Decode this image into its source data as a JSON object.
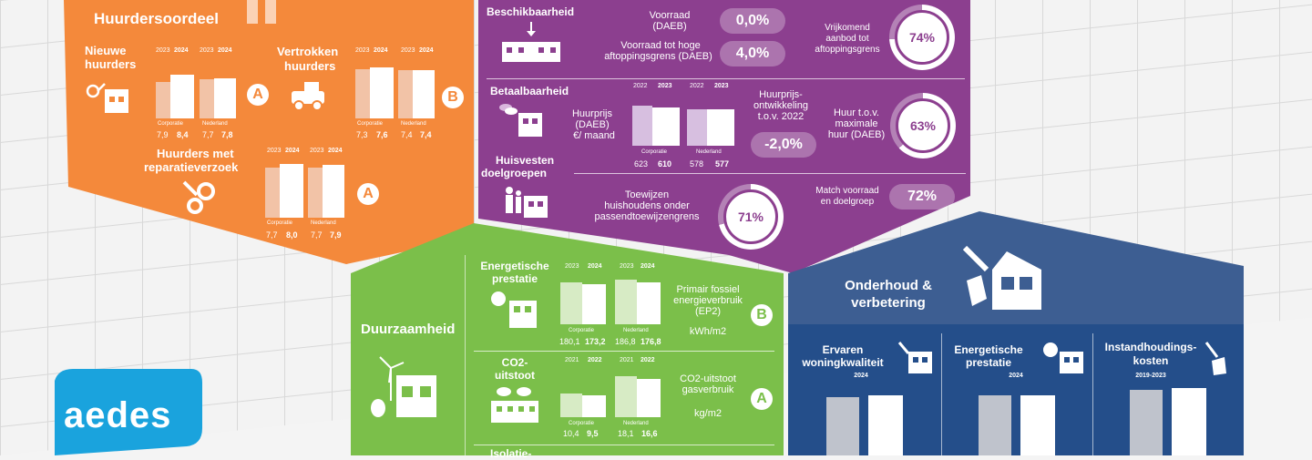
{
  "huurders": {
    "title": "Huurdersoordeel",
    "nieuwe": {
      "label1": "Nieuwe",
      "label2": "huurders",
      "years": [
        "2023",
        "2024",
        "2023",
        "2024"
      ],
      "cat_left": "Corporatie",
      "cat_right": "Nederland",
      "values": [
        "7,9",
        "8,4",
        "7,7",
        "7,8"
      ],
      "grade": "A"
    },
    "vertrokken": {
      "label1": "Vertrokken",
      "label2": "huurders",
      "years": [
        "2023",
        "2024",
        "2023",
        "2024"
      ],
      "cat_left": "Corporatie",
      "cat_right": "Nederland",
      "values": [
        "7,3",
        "7,6",
        "7,4",
        "7,4"
      ],
      "grade": "B"
    },
    "reparatie": {
      "label1": "Huurders met",
      "label2": "reparatieverzoek",
      "years": [
        "2023",
        "2024",
        "2023",
        "2024"
      ],
      "cat_left": "Corporatie",
      "cat_right": "Nederland",
      "values": [
        "7,7",
        "8,0",
        "7,7",
        "7,9"
      ],
      "grade": "A"
    }
  },
  "beschikbaarheid": {
    "title": "Beschikbaarheid",
    "voorraad_label1": "Voorraad",
    "voorraad_label2": "(DAEB)",
    "voorraad_value": "0,0%",
    "hoge_label1": "Voorraad tot hoge",
    "hoge_label2": "aftoppingsgrens (DAEB)",
    "hoge_value": "4,0%",
    "vrij_label1": "Vrijkomend",
    "vrij_label2": "aanbod tot",
    "vrij_label3": "aftoppingsgrens",
    "vrij_value": "74%",
    "vrij_fraction": 0.74
  },
  "betaalbaarheid": {
    "title": "Betaalbaarheid",
    "years": [
      "2022",
      "2023",
      "2022",
      "2023"
    ],
    "huurprijs_label1": "Huurprijs",
    "huurprijs_label2": "(DAEB)",
    "huurprijs_label3": "€/ maand",
    "cat_left": "Corporatie",
    "cat_right": "Nederland",
    "values": [
      "623",
      "610",
      "578",
      "577"
    ],
    "ontw_label1": "Huurprijs-",
    "ontw_label2": "ontwikkeling",
    "ontw_label3": "t.o.v. 2022",
    "ontw_value": "-2,0%",
    "max_label1": "Huur t.o.v.",
    "max_label2": "maximale",
    "max_label3": "huur (DAEB)",
    "max_value": "63%",
    "max_fraction": 0.63
  },
  "huisvesten": {
    "title1": "Huisvesten",
    "title2": "doelgroepen",
    "toewijzen_label1": "Toewijzen",
    "toewijzen_label2": "huishoudens onder",
    "toewijzen_label3": "passendtoewijzengrens",
    "toewijzen_value": "71%",
    "toewijzen_fraction": 0.71,
    "match_label1": "Match voorraad",
    "match_label2": "en doelgroep",
    "match_value": "72%"
  },
  "duurzaamheid": {
    "title": "Duurzaamheid",
    "energie": {
      "label1": "Energetische",
      "label2": "prestatie",
      "years": [
        "2023",
        "2024",
        "2023",
        "2024"
      ],
      "cat_left": "Corporatie",
      "cat_right": "Nederland",
      "values": [
        "180,1",
        "173,2",
        "186,8",
        "176,8"
      ],
      "desc1": "Primair fossiel",
      "desc2": "energieverbruik",
      "desc3": "(EP2)",
      "unit": "kWh/m2",
      "grade": "B"
    },
    "co2": {
      "label1": "CO2-",
      "label2": "uitstoot",
      "years": [
        "2021",
        "2022",
        "2021",
        "2022"
      ],
      "cat_left": "Corporatie",
      "cat_right": "Nederland",
      "values": [
        "10,4",
        "9,5",
        "18,1",
        "16,6"
      ],
      "desc1": "CO2-uitstoot",
      "desc2": "gasverbruik",
      "unit": "kg/m2",
      "grade": "A"
    },
    "isolatie_partial": "Isolatie-"
  },
  "onderhoud": {
    "title1": "Onderhoud &",
    "title2": "verbetering",
    "ervaren_label1": "Ervaren",
    "ervaren_label2": "woningkwaliteit",
    "ervaren_year": "2024",
    "energie_label1": "Energetische",
    "energie_label2": "prestatie",
    "energie_year": "2024",
    "instand_label1": "Instandhoudings-",
    "instand_label2": "kosten",
    "instand_year": "2019-2023"
  },
  "logo": {
    "text": "aedes"
  },
  "colors": {
    "orange": "#f4893b",
    "purple": "#8c3f8f",
    "green": "#7bbf4a",
    "blue": "#2f5a94",
    "blue_dark": "#244e8a",
    "logo": "#1aa3dd"
  }
}
